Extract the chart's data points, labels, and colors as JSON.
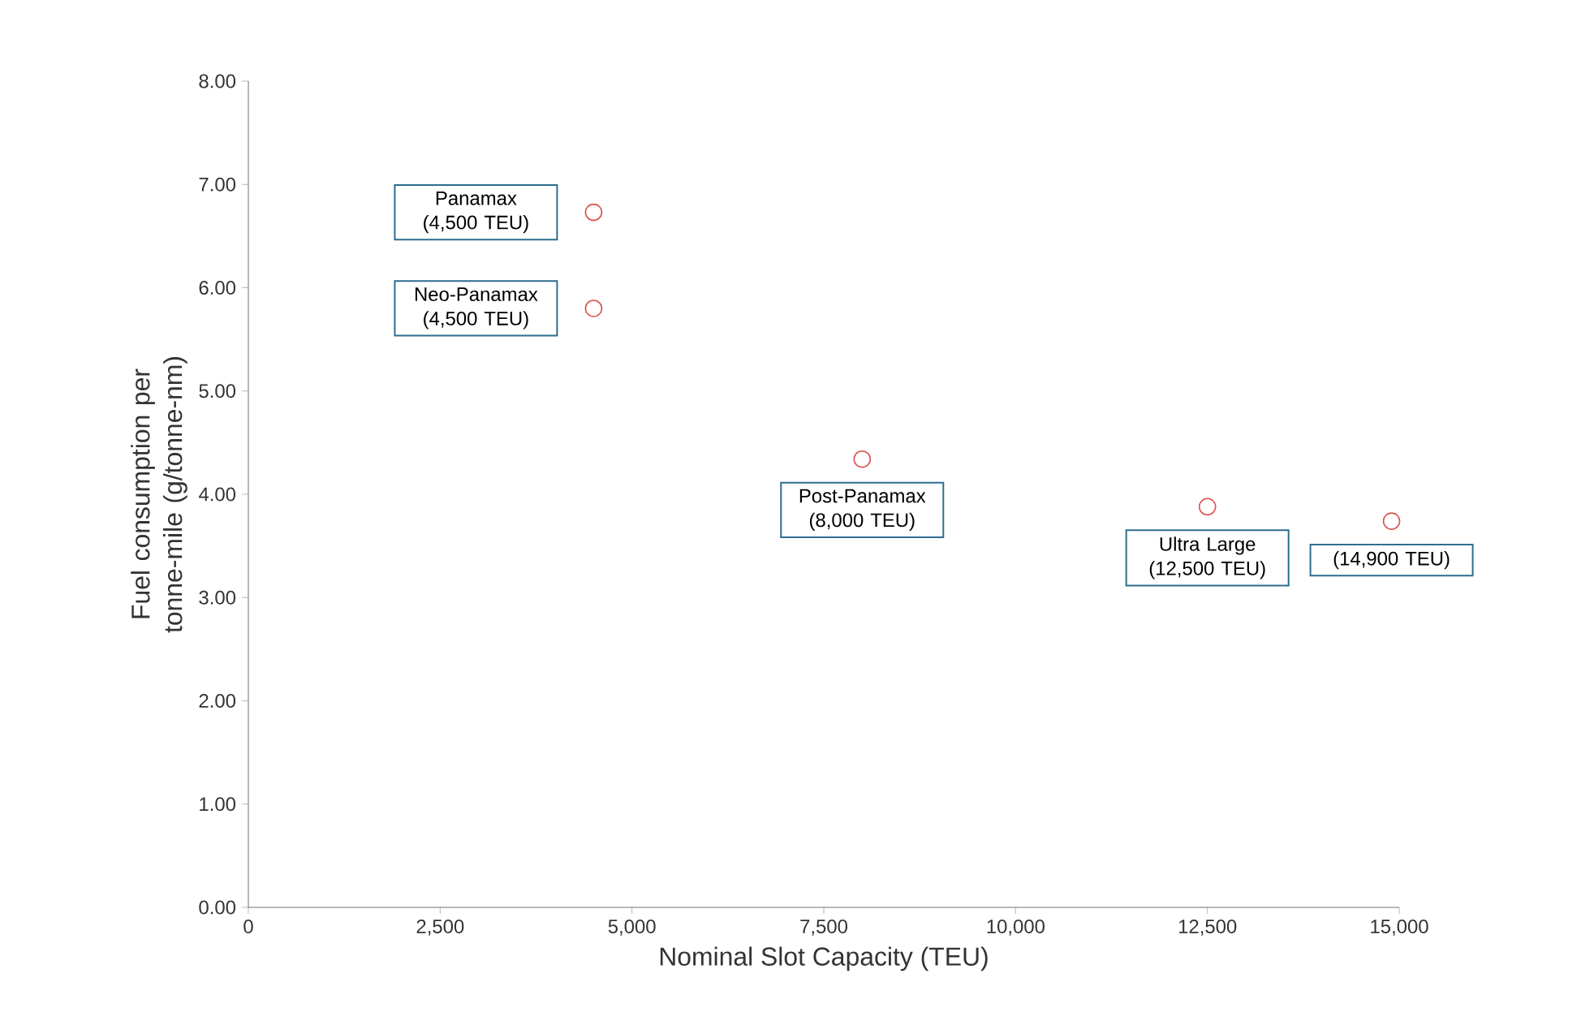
{
  "chart_data": {
    "type": "scatter",
    "xlabel": "Nominal Slot Capacity (TEU)",
    "ylabel": "Fuel consumption per tonne-mile (g/tonne-nm)",
    "series": [
      {
        "color": "#d9534f",
        "x": [
          4500,
          4500,
          8000,
          12500,
          14900
        ],
        "values": [
          6.73,
          5.8,
          4.34,
          3.88,
          3.74
        ]
      }
    ],
    "marker": "circle",
    "xlim": [
      0,
      15000
    ],
    "ylim": [
      0,
      8
    ],
    "xticks": [
      0,
      {
        "value": 2500,
        "label": "2,500"
      },
      {
        "value": 5000,
        "label": "5,000"
      },
      {
        "value": 7500,
        "label": "7,500"
      },
      {
        "value": 10000,
        "label": "10,000"
      },
      {
        "value": 12500,
        "label": "12,500"
      },
      {
        "value": 15000,
        "label": "15,000"
      }
    ],
    "yticks": [
      {
        "value": 0,
        "label": "0.00"
      },
      {
        "value": 1,
        "label": "1.00"
      },
      {
        "value": 2,
        "label": "2.00"
      },
      {
        "value": 3,
        "label": "3.00"
      },
      {
        "value": 4,
        "label": "4.00"
      },
      {
        "value": 5,
        "label": "5.00"
      },
      {
        "value": 6,
        "label": "6.00"
      },
      {
        "value": 7,
        "label": "7.00"
      },
      {
        "value": 8,
        "label": "8.00"
      }
    ],
    "annotations": [
      "Panamax (4,500 TEU)",
      "Neo-Panamax (4,500 TEU)",
      "Post-Panamax (8,000 TEU)",
      "Ultra Large (12,500 TEU)",
      "(14,900 TEU)"
    ]
  }
}
